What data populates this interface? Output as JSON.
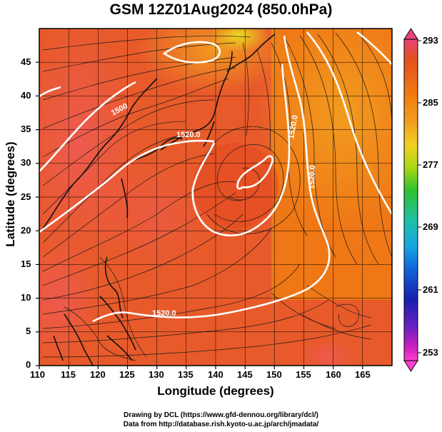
{
  "title": "GSM 12Z01Aug2024 (850.0hPa)",
  "axes": {
    "xlabel": "Longitude (degrees)",
    "ylabel": "Latitude  (degrees)",
    "x_ticks": [
      "110",
      "115",
      "120",
      "125",
      "130",
      "135",
      "140",
      "145",
      "150",
      "155",
      "160",
      "165"
    ],
    "y_ticks": [
      "0",
      "5",
      "10",
      "15",
      "20",
      "25",
      "30",
      "35",
      "40",
      "45"
    ]
  },
  "colorbar": {
    "ticks": [
      "293",
      "285",
      "277",
      "269",
      "261",
      "253"
    ],
    "colors": [
      "#e8447a",
      "#e05020",
      "#f07a10",
      "#f0a020",
      "#f0d020",
      "#a8d818",
      "#30c030",
      "#20c0a0",
      "#18a8e0",
      "#1060d8",
      "#1820b0",
      "#7020c0",
      "#d020c0",
      "#ff40d0"
    ]
  },
  "contour_labels": [
    "1500",
    "1520.0",
    "1520.0",
    "1520.0",
    "1520.0"
  ],
  "credits": {
    "line1": "Drawing by DCL (https://www.gfd-dennou.org/library/dcl/)",
    "line2": "Data from http://database.rish.kyoto-u.ac.jp/arch/jmadata/"
  },
  "chart_data": {
    "type": "heatmap",
    "title": "GSM 12Z01Aug2024 (850.0hPa)",
    "xlabel": "Longitude (degrees)",
    "ylabel": "Latitude  (degrees)",
    "xlim": [
      110,
      170
    ],
    "ylim": [
      0,
      50
    ],
    "color_range": [
      253,
      293
    ],
    "colorbar_ticks": [
      293,
      285,
      277,
      269,
      261,
      253
    ],
    "overlays": [
      "streamlines",
      "geopotential height contours",
      "coastlines",
      "lat-lon grid"
    ],
    "contour_values": [
      1500,
      1520
    ]
  }
}
